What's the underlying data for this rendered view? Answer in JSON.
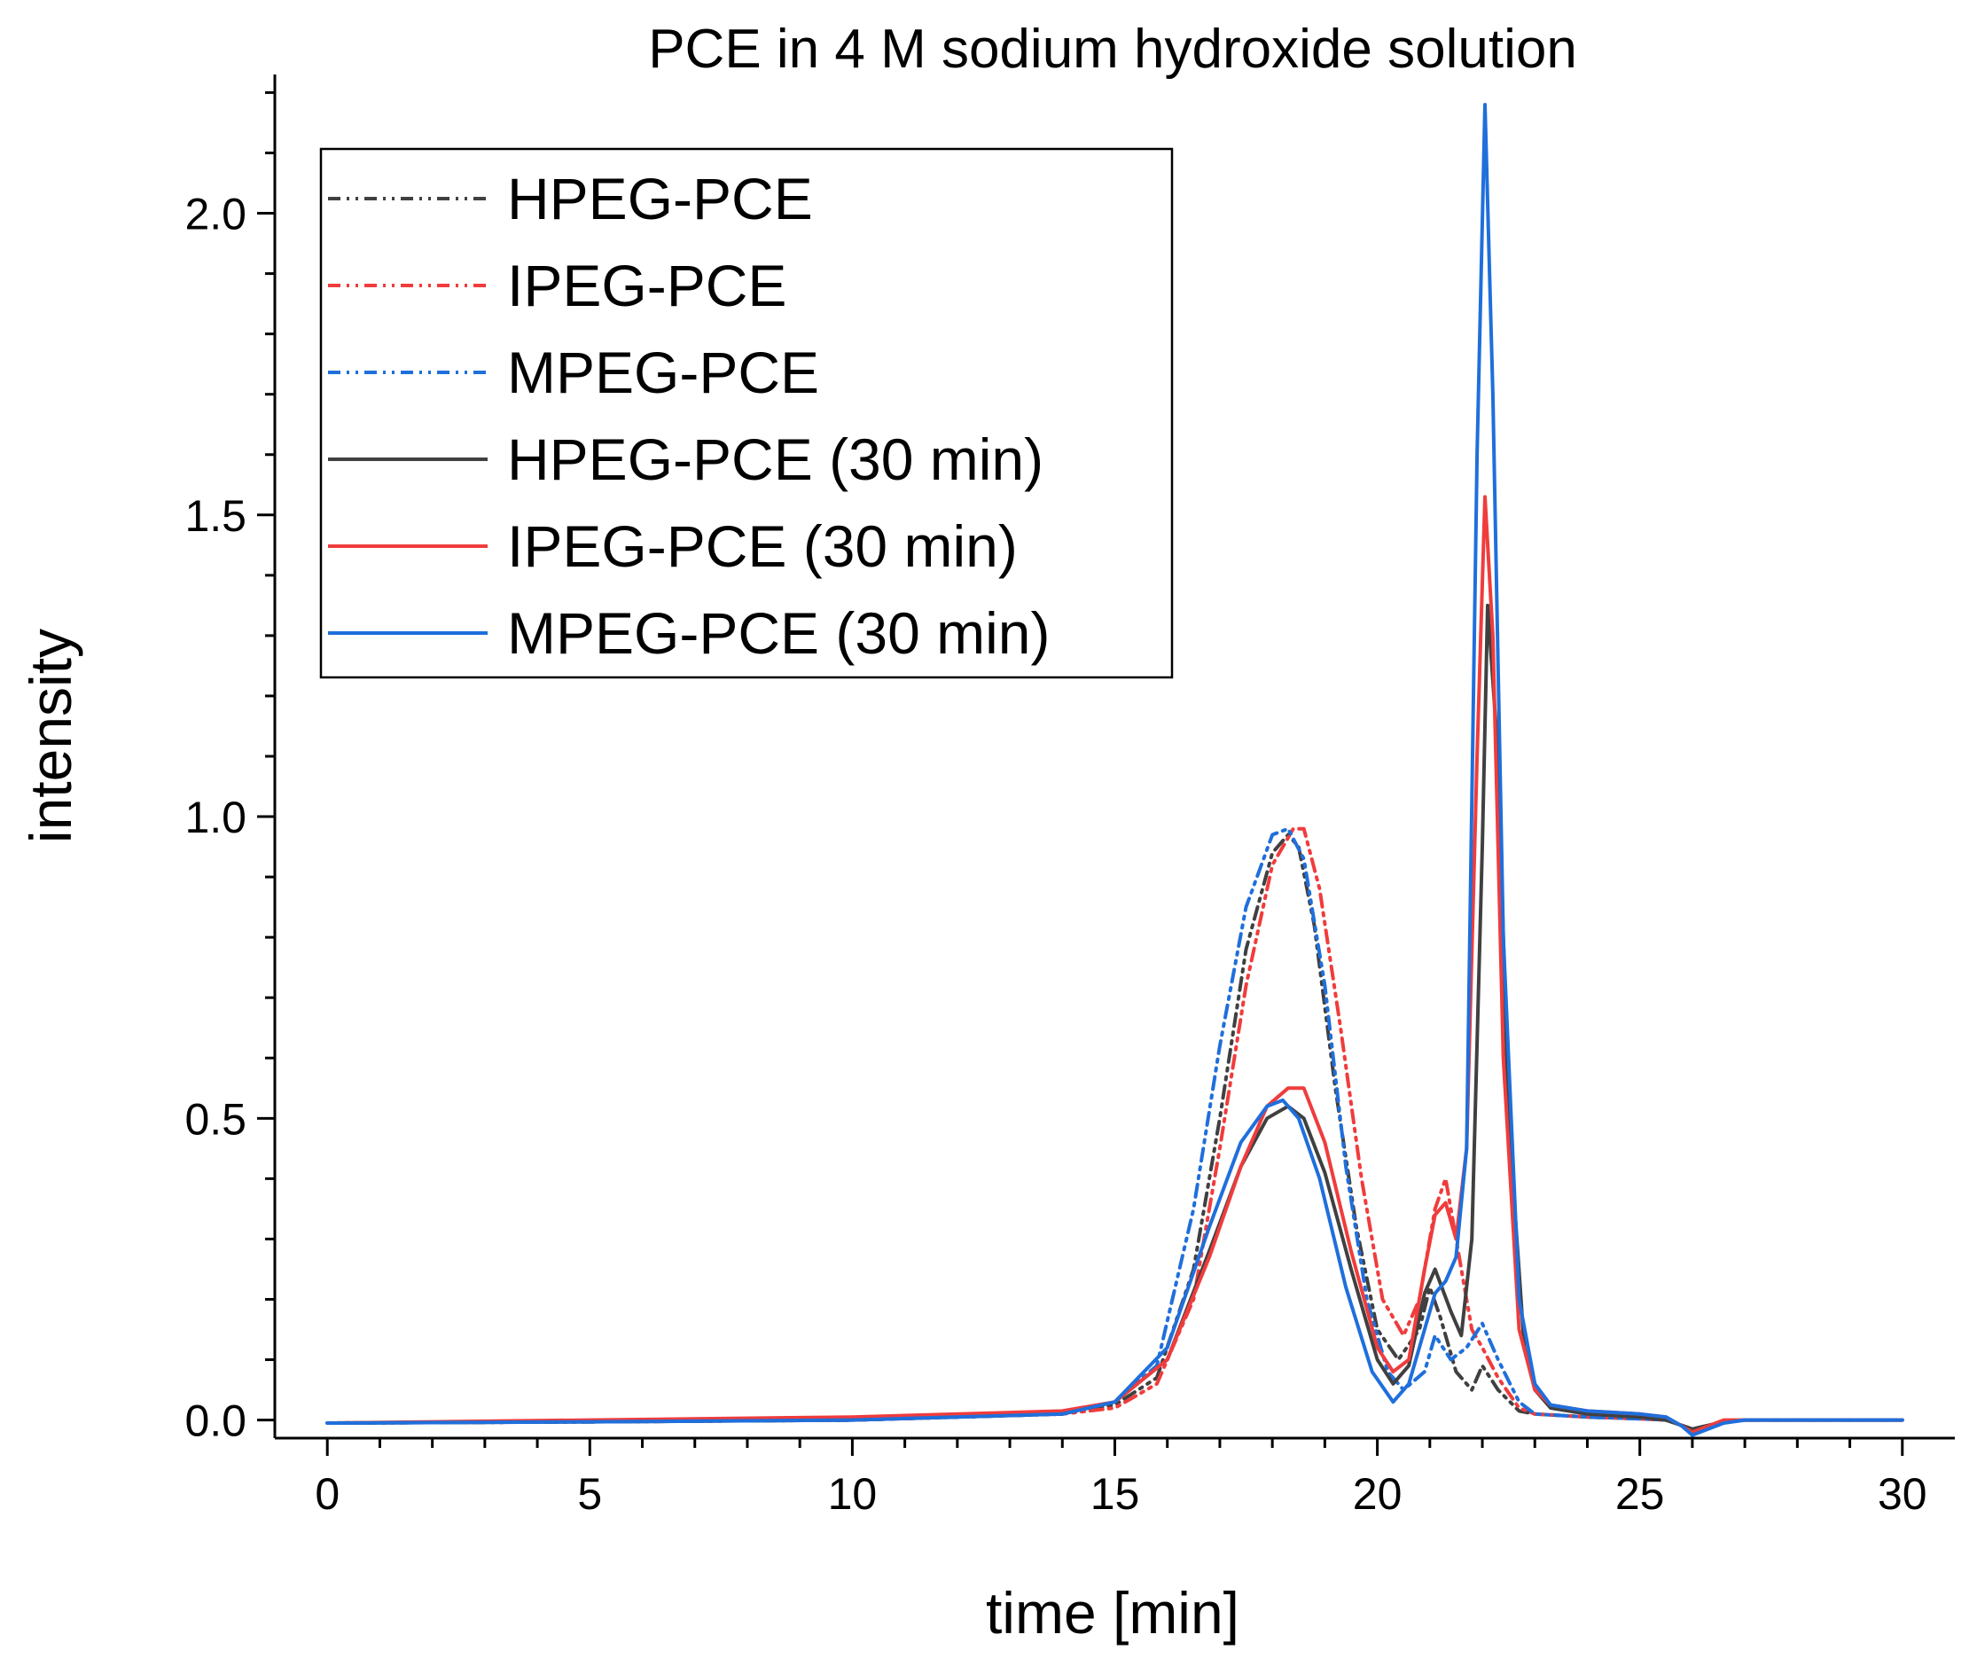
{
  "chart_data": {
    "type": "line",
    "title": "PCE in 4 M sodium hydroxide solution",
    "xlabel": "time [min]",
    "ylabel": "intensity",
    "xlim": [
      -1,
      31
    ],
    "ylim": [
      -0.03,
      2.23
    ],
    "xticks": [
      0,
      5,
      10,
      15,
      20,
      25,
      30
    ],
    "xtick_labels": [
      "0",
      "5",
      "10",
      "15",
      "20",
      "25",
      "30"
    ],
    "yticks": [
      0.0,
      0.5,
      1.0,
      1.5,
      2.0
    ],
    "ytick_labels": [
      "0.0",
      "0.5",
      "1.0",
      "1.5",
      "2.0"
    ],
    "grid": false,
    "legend_position": "top-left",
    "series": [
      {
        "name": "HPEG-PCE",
        "color": "#404040",
        "dash": "dash-dot-dot",
        "x": [
          0,
          5,
          10,
          14,
          15,
          15.8,
          16.5,
          17,
          17.5,
          18,
          18.3,
          18.5,
          18.8,
          19.2,
          19.6,
          20,
          20.4,
          20.8,
          21,
          21.2,
          21.5,
          21.8,
          22,
          22.3,
          22.7,
          23,
          24,
          25,
          25.5,
          26,
          26.5,
          27,
          30
        ],
        "y": [
          -0.005,
          -0.003,
          0.0,
          0.01,
          0.025,
          0.07,
          0.25,
          0.5,
          0.78,
          0.94,
          0.97,
          0.95,
          0.82,
          0.55,
          0.32,
          0.15,
          0.1,
          0.15,
          0.22,
          0.17,
          0.08,
          0.05,
          0.09,
          0.05,
          0.015,
          0.01,
          0.005,
          0.002,
          0.0,
          -0.015,
          -0.005,
          0.0,
          0.0
        ]
      },
      {
        "name": "IPEG-PCE",
        "color": "#f03c3c",
        "dash": "dash-dot-dot",
        "x": [
          0,
          5,
          10,
          14,
          15,
          15.8,
          16.5,
          17,
          17.5,
          18,
          18.4,
          18.6,
          18.9,
          19.3,
          19.7,
          20.1,
          20.5,
          20.8,
          21.1,
          21.3,
          21.5,
          21.8,
          22,
          22.3,
          22.7,
          23,
          24,
          25,
          25.5,
          26,
          26.5,
          27,
          30
        ],
        "y": [
          -0.005,
          -0.003,
          0.0,
          0.01,
          0.02,
          0.06,
          0.2,
          0.45,
          0.72,
          0.92,
          0.98,
          0.98,
          0.88,
          0.65,
          0.4,
          0.2,
          0.14,
          0.2,
          0.35,
          0.4,
          0.3,
          0.15,
          0.12,
          0.07,
          0.02,
          0.01,
          0.005,
          0.002,
          0.0,
          -0.015,
          -0.005,
          0.0,
          0.0
        ]
      },
      {
        "name": "MPEG-PCE",
        "color": "#1f6fdc",
        "dash": "dash-dot-dot",
        "x": [
          0,
          5,
          10,
          14,
          15,
          15.8,
          16.5,
          17,
          17.5,
          18,
          18.3,
          18.6,
          19,
          19.4,
          19.8,
          20.2,
          20.5,
          20.9,
          21.1,
          21.4,
          21.7,
          22,
          22.3,
          22.7,
          23,
          24,
          25,
          25.5,
          26,
          26.5,
          27,
          30
        ],
        "y": [
          -0.005,
          -0.003,
          0.0,
          0.01,
          0.03,
          0.09,
          0.35,
          0.62,
          0.85,
          0.97,
          0.98,
          0.93,
          0.72,
          0.42,
          0.2,
          0.08,
          0.05,
          0.08,
          0.14,
          0.1,
          0.12,
          0.16,
          0.1,
          0.03,
          0.01,
          0.005,
          0.002,
          0.0,
          -0.015,
          -0.005,
          0.0,
          0.0
        ]
      },
      {
        "name": "HPEG-PCE (30 min)",
        "color": "#404040",
        "dash": "solid",
        "x": [
          0,
          5,
          10,
          14,
          15,
          16,
          16.8,
          17.4,
          17.9,
          18.3,
          18.6,
          19,
          19.5,
          20,
          20.3,
          20.6,
          20.9,
          21.1,
          21.4,
          21.6,
          21.8,
          22,
          22.1,
          22.3,
          22.5,
          22.8,
          23,
          23.3,
          24,
          25,
          25.5,
          26,
          26.5,
          27,
          30
        ],
        "y": [
          -0.005,
          -0.003,
          0.0,
          0.01,
          0.03,
          0.1,
          0.28,
          0.42,
          0.5,
          0.52,
          0.5,
          0.41,
          0.25,
          0.1,
          0.06,
          0.09,
          0.21,
          0.25,
          0.18,
          0.14,
          0.3,
          0.95,
          1.35,
          1.1,
          0.5,
          0.12,
          0.05,
          0.02,
          0.01,
          0.005,
          0.0,
          -0.015,
          -0.005,
          0.0,
          0.0
        ]
      },
      {
        "name": "IPEG-PCE (30 min)",
        "color": "#f03c3c",
        "dash": "solid",
        "x": [
          0,
          5,
          10,
          14,
          15,
          16,
          16.8,
          17.4,
          17.9,
          18.3,
          18.6,
          19,
          19.5,
          20,
          20.3,
          20.6,
          20.9,
          21.1,
          21.3,
          21.5,
          21.7,
          21.9,
          22.05,
          22.2,
          22.4,
          22.7,
          23,
          23.3,
          24,
          25,
          25.5,
          25.8,
          26,
          26.3,
          26.6,
          27,
          30
        ],
        "y": [
          -0.005,
          0.0,
          0.005,
          0.015,
          0.03,
          0.1,
          0.27,
          0.42,
          0.52,
          0.55,
          0.55,
          0.46,
          0.28,
          0.12,
          0.08,
          0.1,
          0.25,
          0.34,
          0.36,
          0.3,
          0.45,
          1.1,
          1.53,
          1.3,
          0.6,
          0.15,
          0.05,
          0.025,
          0.015,
          0.01,
          0.005,
          -0.01,
          -0.02,
          -0.01,
          0.0,
          0.0,
          0.0
        ]
      },
      {
        "name": "MPEG-PCE (30 min)",
        "color": "#1f6fdc",
        "dash": "solid",
        "x": [
          0,
          5,
          10,
          14,
          15,
          16,
          16.8,
          17.4,
          17.9,
          18.2,
          18.5,
          18.9,
          19.4,
          19.9,
          20.3,
          20.6,
          20.9,
          21.1,
          21.3,
          21.5,
          21.7,
          21.9,
          22.05,
          22.2,
          22.4,
          22.7,
          23,
          23.3,
          24,
          25,
          25.5,
          25.8,
          26,
          26.3,
          26.6,
          27,
          30
        ],
        "y": [
          -0.005,
          -0.003,
          0.0,
          0.01,
          0.03,
          0.12,
          0.32,
          0.46,
          0.52,
          0.53,
          0.5,
          0.4,
          0.22,
          0.08,
          0.03,
          0.06,
          0.15,
          0.21,
          0.23,
          0.27,
          0.45,
          1.6,
          2.18,
          1.7,
          0.8,
          0.2,
          0.06,
          0.025,
          0.015,
          0.01,
          0.005,
          -0.01,
          -0.025,
          -0.015,
          -0.005,
          0.0,
          0.0
        ]
      }
    ]
  }
}
